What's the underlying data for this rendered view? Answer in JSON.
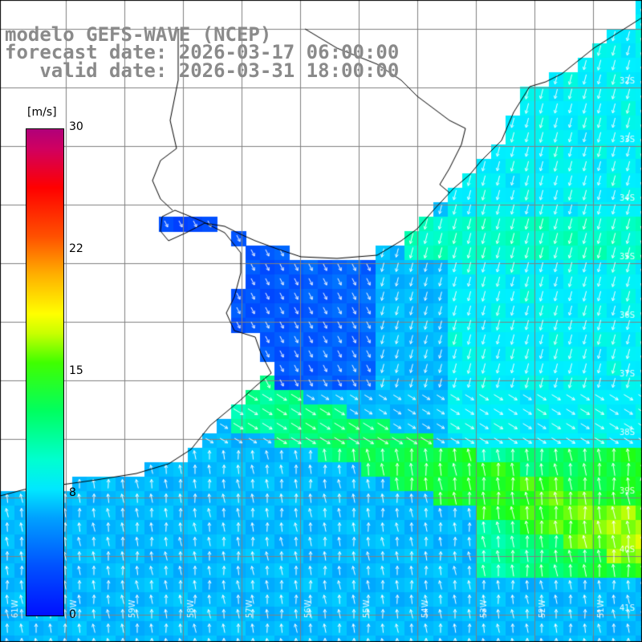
{
  "title": {
    "line1": "modelo GEFS-WAVE (NCEP)",
    "line2": "forecast date: 2026-03-17 06:00:00",
    "line3": "   valid date: 2026-03-31 18:00:00"
  },
  "colorbar": {
    "unit": "[m/s]",
    "ticks": [
      {
        "label": "30",
        "value": 30
      },
      {
        "label": "22",
        "value": 22
      },
      {
        "label": "15",
        "value": 15
      },
      {
        "label": "8",
        "value": 8
      },
      {
        "label": "0",
        "value": 0
      }
    ]
  },
  "map": {
    "lon_labels": [
      "61W",
      "60W",
      "59W",
      "58W",
      "57W",
      "56W",
      "55W",
      "54W",
      "53W",
      "52W",
      "51W"
    ],
    "lat_labels": [
      "32S",
      "33S",
      "34S",
      "35S",
      "36S",
      "37S",
      "38S",
      "39S",
      "40S",
      "41S"
    ],
    "colors": {
      "land": "#ffffff",
      "coast": "#000000",
      "grid": "#808080",
      "arrow": "#ffffff"
    }
  }
}
